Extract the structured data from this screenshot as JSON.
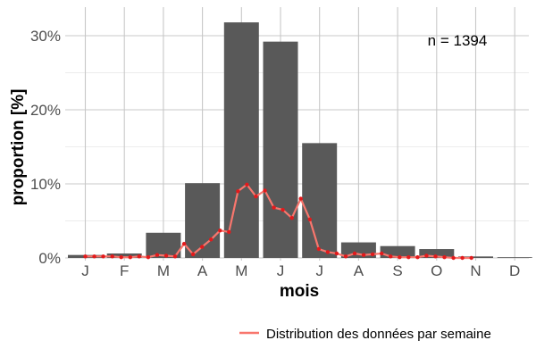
{
  "chart_data": {
    "type": "bar",
    "xlabel": "mois",
    "ylabel": "proportion [%]",
    "categories": [
      "J",
      "F",
      "M",
      "A",
      "M",
      "J",
      "J",
      "A",
      "S",
      "O",
      "N",
      "D"
    ],
    "values": [
      0.4,
      0.6,
      3.4,
      10.1,
      31.8,
      29.2,
      15.5,
      2.1,
      1.6,
      1.2,
      0.2,
      0.1
    ],
    "y_ticks": [
      0,
      10,
      20,
      30
    ],
    "y_tick_labels": [
      "0%",
      "10%",
      "20%",
      "30%"
    ],
    "ylim": [
      0,
      34
    ],
    "grid": true,
    "bar_color": "#595959",
    "annotation": "n = 1394",
    "line_series": {
      "name": "Distribution des données par semaine",
      "color": "#f8766d",
      "point_color": "#e31a1c",
      "x": [
        0.0,
        0.23,
        0.46,
        0.69,
        0.92,
        1.15,
        1.38,
        1.61,
        1.84,
        2.07,
        2.3,
        2.53,
        2.76,
        2.99,
        3.22,
        3.45,
        3.68,
        3.91,
        4.14,
        4.37,
        4.6,
        4.83,
        5.06,
        5.29,
        5.52,
        5.75,
        5.98,
        6.21,
        6.44,
        6.67,
        6.9,
        7.13,
        7.36,
        7.59,
        7.82,
        8.05,
        8.28,
        8.51,
        8.74,
        8.97,
        9.2,
        9.43,
        9.66,
        9.89
      ],
      "y": [
        0.2,
        0.2,
        0.2,
        0.2,
        0.1,
        0.1,
        0.2,
        0.1,
        0.4,
        0.3,
        0.2,
        1.9,
        0.5,
        1.5,
        2.5,
        3.7,
        3.5,
        9.0,
        9.9,
        8.3,
        9.1,
        6.8,
        6.5,
        5.4,
        8.0,
        5.2,
        1.2,
        0.8,
        0.6,
        0.2,
        0.6,
        0.4,
        0.5,
        0.6,
        0.2,
        0.1,
        0.1,
        0.1,
        0.3,
        0.2,
        0.1,
        0.0,
        0.0,
        0.0
      ]
    },
    "legend": {
      "position": "bottom-right",
      "label": "Distribution des données par semaine"
    }
  }
}
